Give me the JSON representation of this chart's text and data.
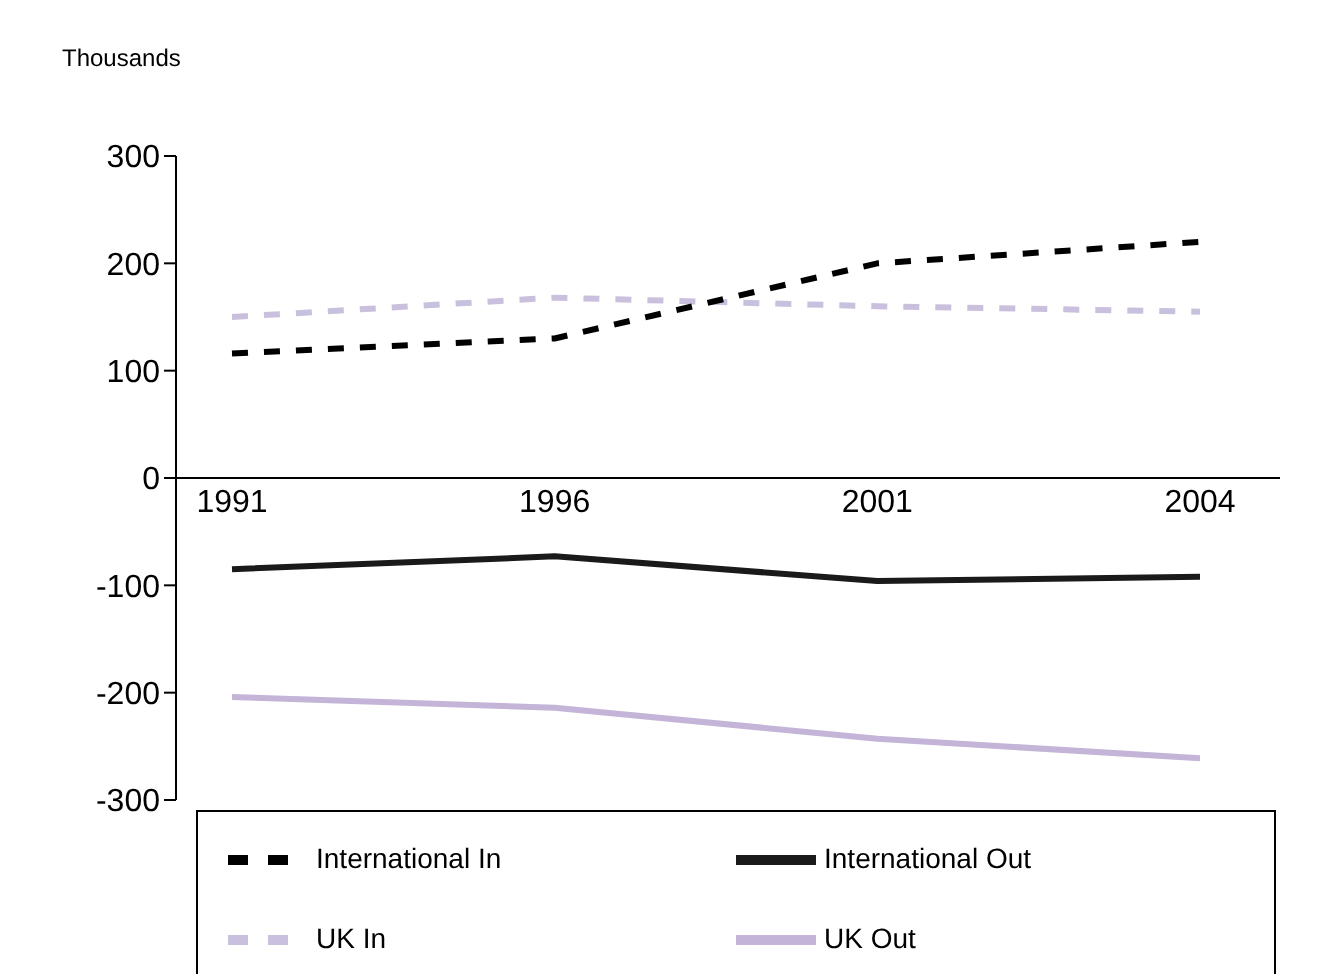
{
  "chart_data": {
    "type": "line",
    "ylabel": "Thousands",
    "categories": [
      "1991",
      "1996",
      "2001",
      "2004"
    ],
    "series": [
      {
        "name": "UK In",
        "color": "#c9c0de",
        "line_style": "dashed",
        "values": [
          150,
          168,
          160,
          155
        ]
      },
      {
        "name": "UK Out",
        "color": "#c4b4d8",
        "line_style": "solid",
        "values": [
          -204,
          -214,
          -243,
          -261
        ]
      },
      {
        "name": "International In",
        "color": "#000000",
        "line_style": "dashed",
        "values": [
          116,
          130,
          200,
          220
        ]
      },
      {
        "name": "International Out",
        "color": "#1a1a1a",
        "line_style": "solid",
        "values": [
          -85,
          -73,
          -96,
          -92
        ]
      }
    ],
    "ylim": [
      -300,
      300
    ],
    "yticks": [
      -300,
      -200,
      -100,
      0,
      100,
      200,
      300
    ],
    "grid": false,
    "legend": "bottom",
    "marker": "none"
  }
}
